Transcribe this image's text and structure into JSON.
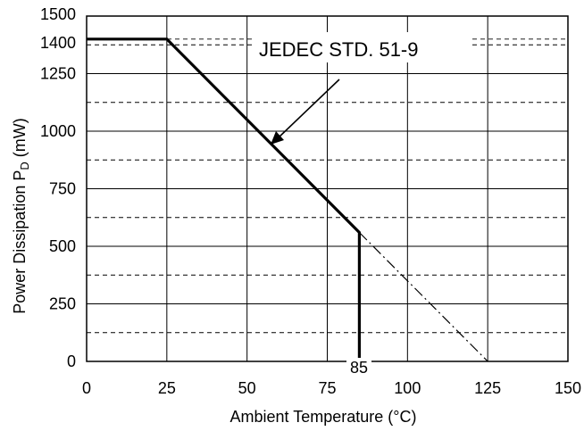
{
  "chart_data": {
    "type": "line",
    "xlabel": "Ambient Temperature (°C)",
    "ylabel_main": "Power Dissipation P",
    "ylabel_sub": "D",
    "ylabel_unit": " (mW)",
    "xlim": [
      0,
      150
    ],
    "ylim": [
      0,
      1500
    ],
    "x_ticks": [
      0,
      25,
      50,
      75,
      100,
      125,
      150
    ],
    "y_ticks": [
      0,
      250,
      500,
      750,
      1000,
      1250,
      1400,
      1500
    ],
    "grid": true,
    "series": [
      {
        "name": "JEDEC STD. 51-9",
        "style": "solid",
        "points": [
          [
            0,
            1400
          ],
          [
            25,
            1400
          ],
          [
            85,
            560
          ],
          [
            85,
            0
          ]
        ]
      },
      {
        "style": "dash-dot",
        "points": [
          [
            85,
            560
          ],
          [
            125,
            0
          ]
        ]
      }
    ],
    "annotations": {
      "series_label": "JEDEC STD. 51-9",
      "vline_label": "85"
    },
    "colors": {
      "line": "#000000",
      "grid": "#000000",
      "background": "#ffffff"
    }
  }
}
